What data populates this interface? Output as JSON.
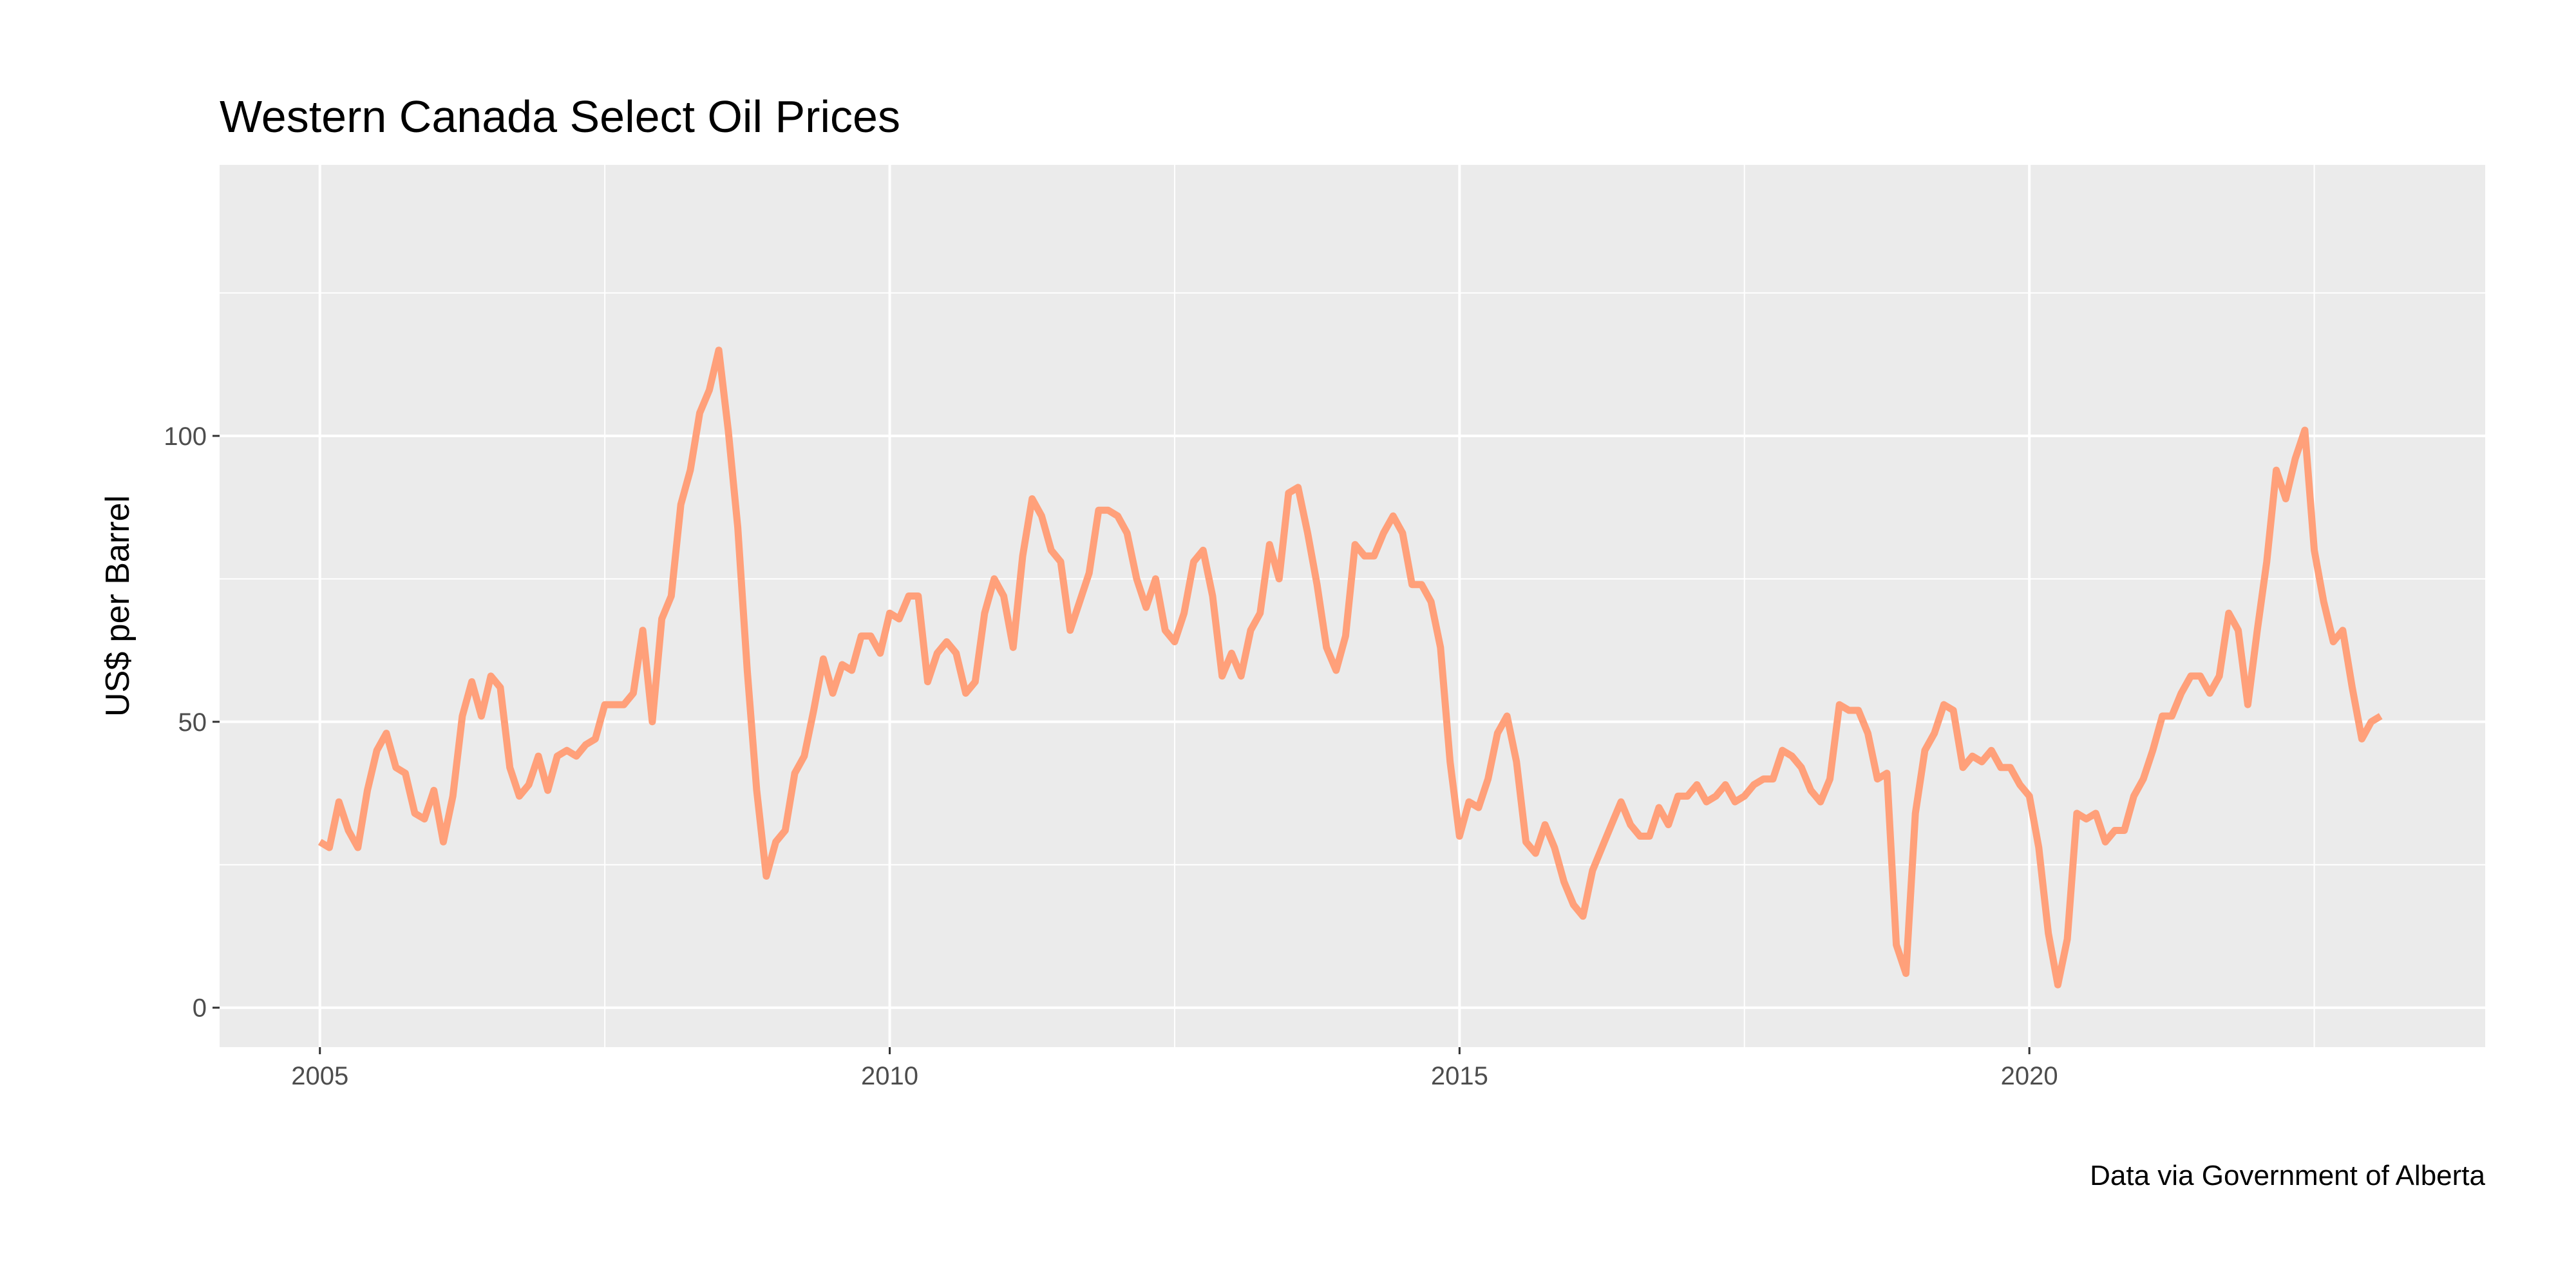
{
  "chart_data": {
    "type": "line",
    "title": "Western Canada Select Oil Prices",
    "y_label": "US$ per Barrel",
    "caption": "Data via Government of Alberta",
    "x": [
      2005,
      2005.083,
      2005.167,
      2005.25,
      2005.333,
      2005.417,
      2005.5,
      2005.583,
      2005.667,
      2005.75,
      2005.833,
      2005.917,
      2006,
      2006.083,
      2006.167,
      2006.25,
      2006.333,
      2006.417,
      2006.5,
      2006.583,
      2006.667,
      2006.75,
      2006.833,
      2006.917,
      2007,
      2007.083,
      2007.167,
      2007.25,
      2007.333,
      2007.417,
      2007.5,
      2007.583,
      2007.667,
      2007.75,
      2007.833,
      2007.917,
      2008,
      2008.083,
      2008.167,
      2008.25,
      2008.333,
      2008.417,
      2008.5,
      2008.583,
      2008.667,
      2008.75,
      2008.833,
      2008.917,
      2009,
      2009.083,
      2009.167,
      2009.25,
      2009.333,
      2009.417,
      2009.5,
      2009.583,
      2009.667,
      2009.75,
      2009.833,
      2009.917,
      2010,
      2010.083,
      2010.167,
      2010.25,
      2010.333,
      2010.417,
      2010.5,
      2010.583,
      2010.667,
      2010.75,
      2010.833,
      2010.917,
      2011,
      2011.083,
      2011.167,
      2011.25,
      2011.333,
      2011.417,
      2011.5,
      2011.583,
      2011.667,
      2011.75,
      2011.833,
      2011.917,
      2012,
      2012.083,
      2012.167,
      2012.25,
      2012.333,
      2012.417,
      2012.5,
      2012.583,
      2012.667,
      2012.75,
      2012.833,
      2012.917,
      2013,
      2013.083,
      2013.167,
      2013.25,
      2013.333,
      2013.417,
      2013.5,
      2013.583,
      2013.667,
      2013.75,
      2013.833,
      2013.917,
      2014,
      2014.083,
      2014.167,
      2014.25,
      2014.333,
      2014.417,
      2014.5,
      2014.583,
      2014.667,
      2014.75,
      2014.833,
      2014.917,
      2015,
      2015.083,
      2015.167,
      2015.25,
      2015.333,
      2015.417,
      2015.5,
      2015.583,
      2015.667,
      2015.75,
      2015.833,
      2015.917,
      2016,
      2016.083,
      2016.167,
      2016.25,
      2016.333,
      2016.417,
      2016.5,
      2016.583,
      2016.667,
      2016.75,
      2016.833,
      2016.917,
      2017,
      2017.083,
      2017.167,
      2017.25,
      2017.333,
      2017.417,
      2017.5,
      2017.583,
      2017.667,
      2017.75,
      2017.833,
      2017.917,
      2018,
      2018.083,
      2018.167,
      2018.25,
      2018.333,
      2018.417,
      2018.5,
      2018.583,
      2018.667,
      2018.75,
      2018.833,
      2018.917,
      2019,
      2019.083,
      2019.167,
      2019.25,
      2019.333,
      2019.417,
      2019.5,
      2019.583,
      2019.667,
      2019.75,
      2019.833,
      2019.917,
      2020,
      2020.083,
      2020.167,
      2020.25,
      2020.333,
      2020.417,
      2020.5,
      2020.583,
      2020.667,
      2020.75,
      2020.833,
      2020.917,
      2021,
      2021.083,
      2021.167,
      2021.25,
      2021.333,
      2021.417,
      2021.5,
      2021.583,
      2021.667,
      2021.75,
      2021.833,
      2021.917,
      2022,
      2022.083,
      2022.167,
      2022.25,
      2022.333,
      2022.417,
      2022.5,
      2022.583,
      2022.667,
      2022.75,
      2022.833,
      2022.917,
      2023,
      2023.083
    ],
    "series": [
      {
        "color": "#ffa07a",
        "values": [
          29,
          28,
          36,
          31,
          28,
          38,
          45,
          48,
          42,
          41,
          34,
          33,
          38,
          29,
          37,
          51,
          57,
          51,
          58,
          56,
          42,
          37,
          39,
          44,
          38,
          44,
          45,
          44,
          46,
          47,
          53,
          53,
          53,
          55,
          66,
          50,
          68,
          72,
          88,
          94,
          104,
          108,
          115,
          101,
          84,
          59,
          38,
          23,
          29,
          31,
          41,
          44,
          52,
          61,
          55,
          60,
          59,
          65,
          65,
          62,
          69,
          68,
          72,
          72,
          57,
          62,
          64,
          62,
          55,
          57,
          69,
          75,
          72,
          63,
          79,
          89,
          86,
          80,
          78,
          66,
          71,
          76,
          87,
          87,
          86,
          83,
          75,
          70,
          75,
          66,
          64,
          69,
          78,
          80,
          72,
          58,
          62,
          58,
          66,
          69,
          81,
          75,
          90,
          91,
          83,
          74,
          63,
          59,
          65,
          81,
          79,
          79,
          83,
          86,
          83,
          74,
          74,
          71,
          63,
          43,
          30,
          36,
          35,
          40,
          48,
          51,
          43,
          29,
          27,
          32,
          28,
          22,
          18,
          16,
          24,
          28,
          32,
          36,
          32,
          30,
          30,
          35,
          32,
          37,
          37,
          39,
          36,
          37,
          39,
          36,
          37,
          39,
          40,
          40,
          45,
          44,
          42,
          38,
          36,
          40,
          53,
          52,
          52,
          48,
          40,
          41,
          11,
          6,
          34,
          45,
          48,
          53,
          52,
          42,
          44,
          43,
          45,
          42,
          42,
          39,
          37,
          28,
          13,
          4,
          12,
          34,
          33,
          34,
          29,
          31,
          31,
          37,
          40,
          45,
          51,
          51,
          55,
          58,
          58,
          55,
          58,
          69,
          66,
          53,
          66,
          78,
          94,
          89,
          96,
          101,
          80,
          71,
          64,
          66,
          56,
          47,
          50,
          51
        ]
      }
    ],
    "xlim": [
      2004.12,
      2024.0
    ],
    "ylim": [
      -6.9,
      147.4
    ],
    "xticks": [
      2005,
      2010,
      2015,
      2020
    ],
    "yticks": [
      0,
      50,
      100
    ],
    "grid": true
  }
}
